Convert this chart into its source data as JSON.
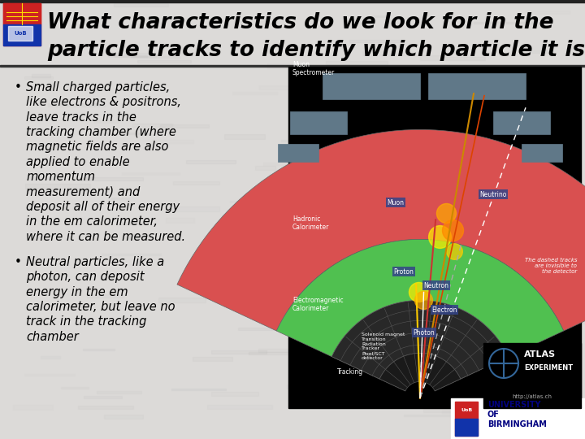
{
  "title_line1": "What characteristics do we look for in the",
  "title_line2": "particle tracks to identify which particle it is?",
  "title_fontsize": 19,
  "bg_color": "#e8e6e4",
  "bullet1_lines": [
    "Small charged particles,",
    "like electrons & positrons,",
    "leave tracks in the",
    "tracking chamber (where",
    "magnetic fields are also",
    "applied to enable",
    "momentum",
    "measurement) and",
    "deposit all of their energy",
    "in the em calorimeter,",
    "where it can be measured."
  ],
  "bullet2_lines": [
    "Neutral particles, like a",
    "photon, can deposit",
    "energy in the em",
    "calorimeter, but leave no",
    "track in the tracking",
    "chamber"
  ],
  "bullet_fontsize": 10.5,
  "univ_text": "UNIVERSITY\nOF\nBIRMINGHAM",
  "univ_color": "#000080",
  "detector_bg": "#000000",
  "hadronic_color": "#d95050",
  "em_color": "#50c050",
  "tracking_color": "#303030",
  "muon_spec_color": "#607080",
  "atlas_blue": "#1a3a8a"
}
